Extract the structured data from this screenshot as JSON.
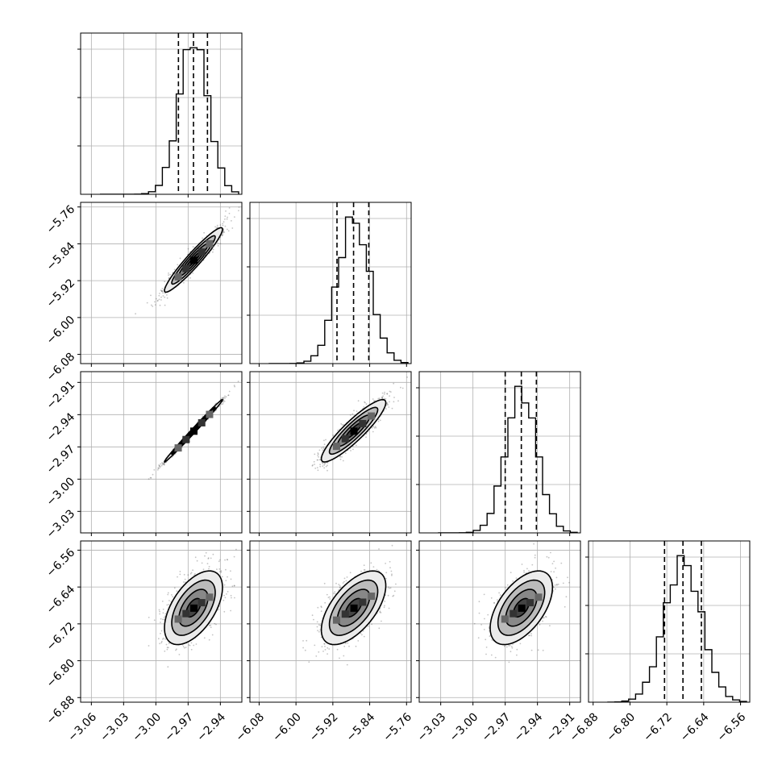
{
  "chart_data": {
    "type": "corner",
    "parameters": [
      {
        "median": -2.965,
        "q16": -2.979,
        "q84": -2.952,
        "sigma": 0.0135,
        "ticks": [
          -3.06,
          -3.03,
          -3.0,
          -2.97,
          -2.94
        ],
        "range": [
          -3.07,
          -2.92
        ]
      },
      {
        "median": -5.875,
        "q16": -5.911,
        "q84": -5.842,
        "sigma": 0.035,
        "ticks": [
          -6.08,
          -6.0,
          -5.92,
          -5.84,
          -5.76
        ],
        "range": [
          -6.1,
          -5.75
        ]
      },
      {
        "median": -2.955,
        "q16": -2.97,
        "q84": -2.941,
        "sigma": 0.0145,
        "ticks": [
          -3.03,
          -3.0,
          -2.97,
          -2.94,
          -2.91
        ],
        "range": [
          -3.05,
          -2.9
        ]
      },
      {
        "median": -6.685,
        "q16": -6.725,
        "q84": -6.645,
        "sigma": 0.04,
        "ticks": [
          -6.88,
          -6.8,
          -6.72,
          -6.64,
          -6.56
        ],
        "range": [
          -6.89,
          -6.54
        ]
      }
    ],
    "correlations": [
      [
        1.0,
        0.95,
        0.995,
        0.55
      ],
      [
        0.95,
        1.0,
        0.9,
        0.6
      ],
      [
        0.995,
        0.9,
        1.0,
        0.55
      ],
      [
        0.55,
        0.6,
        0.55,
        1.0
      ]
    ],
    "hist_bins": 20,
    "contour_levels_sigma": [
      0.5,
      1.0,
      1.5,
      2.0
    ],
    "grid": true,
    "colors": {
      "contour_fill": [
        "#000000",
        "#444444",
        "#888888",
        "#bbbbbb",
        "#ebebeb"
      ],
      "scatter": "#555555",
      "grid": "#b0b0b0"
    }
  }
}
